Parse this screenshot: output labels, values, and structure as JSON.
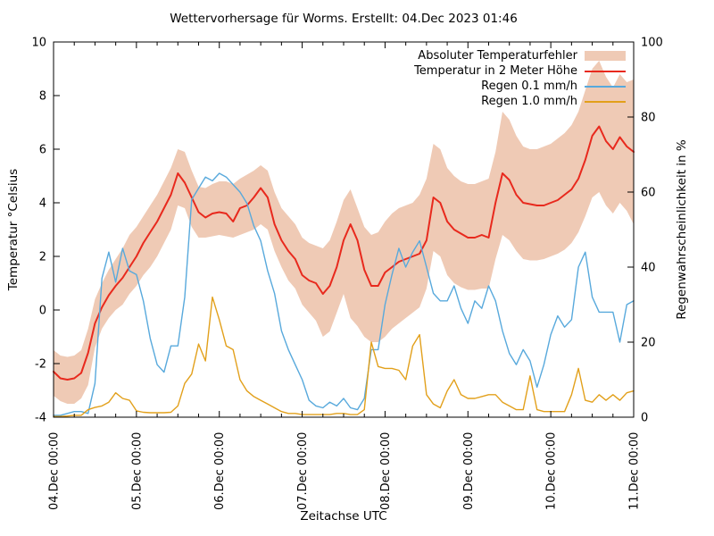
{
  "page": {
    "background": "#ffffff"
  },
  "chart_data": {
    "type": "line",
    "title": "Wettervorhersage für Worms. Erstellt: 04.Dec 2023 01:46",
    "xlabel": "Zeitachse UTC",
    "ylabel_left": "Temperatur °Celsius",
    "ylabel_right": "Regenwahrscheinlichkeit in %",
    "axes": {
      "grid": false,
      "y_left": {
        "min": -4,
        "max": 10,
        "tick_step": 2,
        "tick_labels": [
          "-4",
          "-2",
          "0",
          "2",
          "4",
          "6",
          "8",
          "10"
        ]
      },
      "y_right": {
        "min": 0,
        "max": 100,
        "tick_step": 20,
        "tick_labels": [
          "0",
          "20",
          "40",
          "60",
          "80",
          "100"
        ]
      },
      "x": {
        "hours_span": 168,
        "major_tick_hours": 24,
        "minor_tick_hours": 6,
        "tick_labels": [
          "04.Dec 00:00",
          "05.Dec 00:00",
          "06.Dec 00:00",
          "07.Dec 00:00",
          "08.Dec 00:00",
          "09.Dec 00:00",
          "10.Dec 00:00",
          "11.Dec 00:00"
        ]
      }
    },
    "sample_step_hours": 2,
    "legend": {
      "position": "top-right-inside"
    },
    "series": [
      {
        "name": "Absoluter Temperaturfehler",
        "type": "band",
        "axis": "left",
        "color": "#efcab5",
        "upper": [
          -1.5,
          -1.7,
          -1.75,
          -1.7,
          -1.5,
          -0.7,
          0.4,
          1.0,
          1.5,
          1.9,
          2.3,
          2.8,
          3.1,
          3.5,
          3.9,
          4.3,
          4.8,
          5.3,
          6.0,
          5.9,
          5.2,
          4.6,
          4.55,
          4.7,
          4.8,
          4.8,
          4.7,
          4.9,
          5.05,
          5.2,
          5.4,
          5.2,
          4.4,
          3.8,
          3.5,
          3.2,
          2.7,
          2.5,
          2.4,
          2.3,
          2.6,
          3.3,
          4.1,
          4.5,
          3.8,
          3.1,
          2.8,
          2.9,
          3.3,
          3.6,
          3.8,
          3.9,
          4.0,
          4.3,
          4.9,
          6.2,
          6.0,
          5.3,
          5.0,
          4.8,
          4.7,
          4.7,
          4.8,
          4.9,
          5.9,
          7.4,
          7.1,
          6.5,
          6.1,
          6.0,
          6.0,
          6.1,
          6.2,
          6.4,
          6.6,
          6.9,
          7.4,
          8.2,
          9.0,
          9.3,
          8.7,
          8.3,
          8.8,
          8.5,
          8.6
        ],
        "lower": [
          -3.2,
          -3.4,
          -3.5,
          -3.5,
          -3.3,
          -2.8,
          -1.4,
          -0.7,
          -0.3,
          0.0,
          0.2,
          0.6,
          0.9,
          1.3,
          1.6,
          2.0,
          2.5,
          3.0,
          3.9,
          3.8,
          3.1,
          2.7,
          2.7,
          2.75,
          2.8,
          2.75,
          2.7,
          2.8,
          2.9,
          3.0,
          3.2,
          3.0,
          2.2,
          1.6,
          1.1,
          0.8,
          0.2,
          -0.1,
          -0.4,
          -1.0,
          -0.8,
          -0.1,
          0.6,
          -0.3,
          -0.6,
          -1.0,
          -1.2,
          -1.2,
          -1.0,
          -0.7,
          -0.5,
          -0.3,
          -0.1,
          0.1,
          0.8,
          2.2,
          2.0,
          1.3,
          1.0,
          0.85,
          0.75,
          0.75,
          0.8,
          0.8,
          1.9,
          2.8,
          2.6,
          2.2,
          1.9,
          1.85,
          1.85,
          1.9,
          2.0,
          2.1,
          2.25,
          2.5,
          2.9,
          3.5,
          4.2,
          4.4,
          3.9,
          3.6,
          4.0,
          3.7,
          3.2
        ]
      },
      {
        "name": "Temperatur in 2 Meter Höhe",
        "type": "line",
        "axis": "left",
        "color": "#e8291d",
        "width": 2,
        "values": [
          -2.3,
          -2.55,
          -2.6,
          -2.55,
          -2.35,
          -1.6,
          -0.5,
          0.1,
          0.55,
          0.9,
          1.2,
          1.6,
          2.0,
          2.5,
          2.9,
          3.3,
          3.8,
          4.3,
          5.1,
          4.75,
          4.2,
          3.65,
          3.45,
          3.6,
          3.65,
          3.6,
          3.3,
          3.8,
          3.9,
          4.2,
          4.55,
          4.2,
          3.2,
          2.6,
          2.2,
          1.9,
          1.3,
          1.1,
          1.0,
          0.6,
          0.9,
          1.6,
          2.6,
          3.2,
          2.6,
          1.5,
          0.9,
          0.9,
          1.4,
          1.6,
          1.8,
          1.9,
          2.0,
          2.1,
          2.6,
          4.2,
          4.0,
          3.3,
          3.0,
          2.85,
          2.7,
          2.7,
          2.8,
          2.7,
          4.0,
          5.1,
          4.85,
          4.3,
          4.0,
          3.95,
          3.9,
          3.9,
          4.0,
          4.1,
          4.3,
          4.5,
          4.9,
          5.6,
          6.5,
          6.85,
          6.3,
          6.0,
          6.45,
          6.1,
          5.9
        ]
      },
      {
        "name": "Regen 0.1 mm/h",
        "type": "line",
        "axis": "right",
        "color": "#58a9dc",
        "width": 1.4,
        "values": [
          0.5,
          0.5,
          1,
          1.5,
          1.5,
          1,
          9,
          37,
          44,
          36,
          45,
          39,
          38,
          31,
          21,
          14,
          12,
          19,
          19,
          32,
          58,
          61,
          64,
          63,
          65,
          64,
          62,
          60,
          57,
          51,
          47,
          39,
          33,
          23,
          18,
          14,
          10,
          4.5,
          3,
          2.5,
          4,
          3,
          5,
          2.5,
          2,
          5,
          18,
          18,
          30,
          38,
          45,
          40,
          44,
          47,
          40,
          33,
          31,
          31,
          35,
          29,
          25,
          31,
          29,
          35,
          31,
          23,
          17,
          14,
          18,
          15,
          8,
          14,
          22,
          27,
          24,
          26,
          40,
          44,
          32,
          28,
          28,
          28,
          20,
          30,
          31
        ]
      },
      {
        "name": "Regen 1.0 mm/h",
        "type": "line",
        "axis": "right",
        "color": "#e2a01b",
        "width": 1.4,
        "values": [
          0.2,
          0.2,
          0.3,
          0.5,
          0.5,
          2,
          2.6,
          3,
          4,
          6.5,
          5,
          4.5,
          1.7,
          1.3,
          1.2,
          1.2,
          1.2,
          1.3,
          3,
          9,
          11.5,
          19.5,
          15,
          32,
          26,
          19,
          18,
          10,
          7,
          5.5,
          4.5,
          3.5,
          2.5,
          1.5,
          1,
          1,
          0.7,
          0.7,
          0.7,
          0.7,
          0.7,
          1,
          1,
          0.7,
          0.7,
          2,
          20,
          13.5,
          13,
          13,
          12.5,
          10,
          19,
          22,
          6,
          3.5,
          2.5,
          7,
          10,
          6,
          5,
          5,
          5.5,
          6,
          6,
          4,
          3,
          2,
          2,
          11,
          2,
          1.5,
          1.5,
          1.5,
          1.5,
          6,
          13,
          4.5,
          4,
          6,
          4.5,
          6,
          4.5,
          6.5,
          7
        ]
      }
    ]
  }
}
